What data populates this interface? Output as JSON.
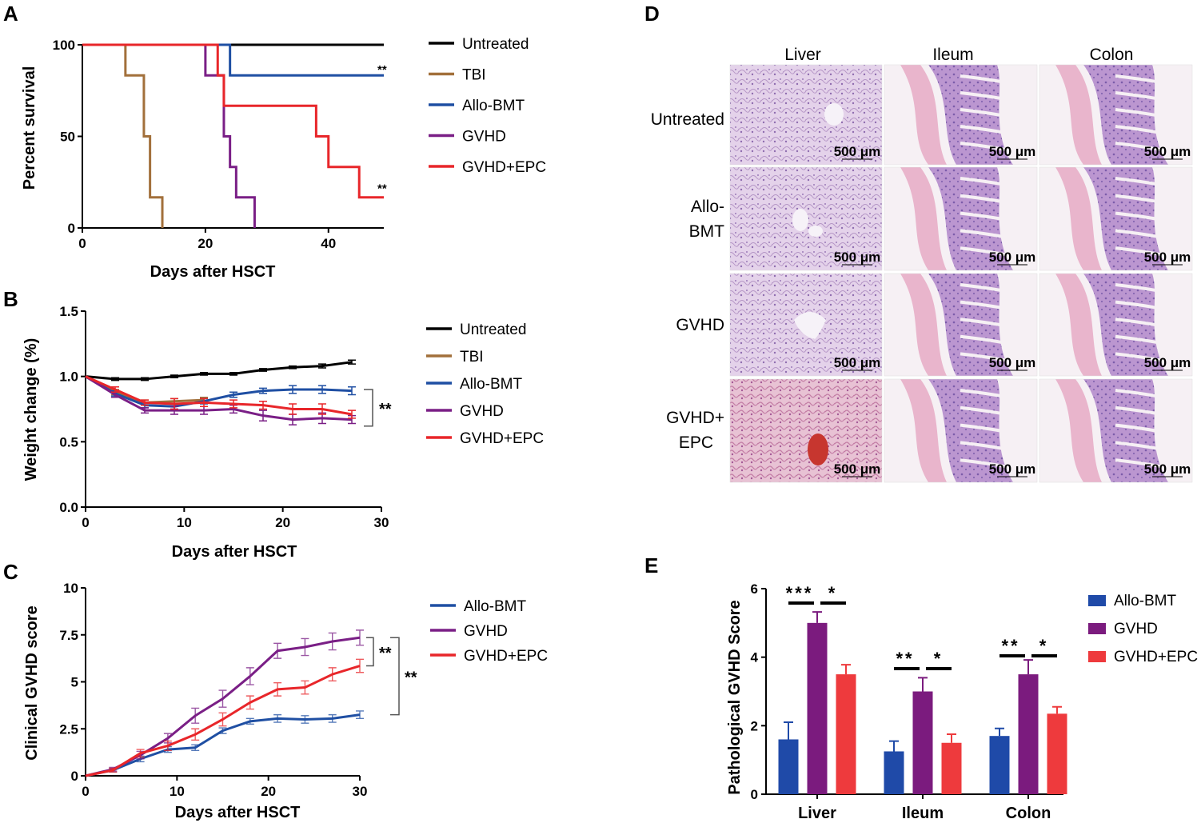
{
  "panel_labels": {
    "A": "A",
    "B": "B",
    "C": "C",
    "D": "D",
    "E": "E"
  },
  "colors": {
    "Untreated": "#000000",
    "TBI": "#a2703b",
    "Allo-BMT": "#1f4fa3",
    "GVHD": "#7a1f86",
    "GVHD+EPC": "#e8262a",
    "E_Allo-BMT": "#1f4aa8",
    "E_GVHD": "#7b1b7e",
    "E_GVHD+EPC": "#ee3a3d"
  },
  "chart_data": [
    {
      "id": "A",
      "type": "line",
      "step": true,
      "xlabel": "Days after HSCT",
      "ylabel": "Percent survival",
      "xlim": [
        0,
        49
      ],
      "ylim": [
        0,
        100
      ],
      "xticks": [
        0,
        20,
        40
      ],
      "yticks": [
        0,
        50,
        100
      ],
      "legend": [
        "Untreated",
        "TBI",
        "Allo-BMT",
        "GVHD",
        "GVHD+EPC"
      ],
      "series": [
        {
          "name": "Untreated",
          "x": [
            0,
            49
          ],
          "y": [
            100,
            100
          ]
        },
        {
          "name": "TBI",
          "x": [
            0,
            7,
            10,
            11,
            13
          ],
          "y": [
            100,
            83.3,
            50,
            16.7,
            0
          ]
        },
        {
          "name": "Allo-BMT",
          "x": [
            0,
            24,
            49
          ],
          "y": [
            100,
            83.3,
            83.3
          ]
        },
        {
          "name": "GVHD",
          "x": [
            0,
            20,
            23,
            24,
            25,
            28
          ],
          "y": [
            100,
            83.3,
            50,
            33.3,
            16.7,
            0
          ]
        },
        {
          "name": "GVHD+EPC",
          "x": [
            0,
            22,
            23,
            38,
            40,
            45,
            49
          ],
          "y": [
            100,
            83.3,
            66.7,
            50,
            33.3,
            16.7,
            16.7
          ]
        }
      ],
      "annotations": [
        {
          "text": "**",
          "x": 49,
          "y": 87
        },
        {
          "text": "**",
          "x": 49,
          "y": 22
        }
      ]
    },
    {
      "id": "B",
      "type": "line",
      "xlabel": "Days after HSCT",
      "ylabel": "Weight change (%)",
      "xlim": [
        0,
        30
      ],
      "ylim": [
        0,
        1.5
      ],
      "xticks": [
        0,
        10,
        20,
        30
      ],
      "yticks": [
        "0.0",
        "0.5",
        "1.0",
        "1.5"
      ],
      "legend": [
        "Untreated",
        "TBI",
        "Allo-BMT",
        "GVHD",
        "GVHD+EPC"
      ],
      "series": [
        {
          "name": "Untreated",
          "x": [
            0,
            3,
            6,
            9,
            12,
            15,
            18,
            21,
            24,
            27
          ],
          "y": [
            1.0,
            0.98,
            0.98,
            1.0,
            1.02,
            1.02,
            1.05,
            1.07,
            1.08,
            1.11
          ],
          "err": [
            0,
            0.01,
            0.01,
            0.01,
            0.01,
            0.01,
            0.01,
            0.01,
            0.015,
            0.015
          ]
        },
        {
          "name": "TBI",
          "x": [
            0,
            3,
            6,
            9,
            12
          ],
          "y": [
            1.0,
            0.88,
            0.8,
            0.81,
            0.82
          ],
          "err": [
            0,
            0.02,
            0.02,
            0.02,
            0.02
          ]
        },
        {
          "name": "Allo-BMT",
          "x": [
            0,
            3,
            6,
            9,
            12,
            15,
            18,
            21,
            24,
            27
          ],
          "y": [
            1.0,
            0.87,
            0.78,
            0.77,
            0.81,
            0.86,
            0.89,
            0.9,
            0.9,
            0.89
          ],
          "err": [
            0,
            0.02,
            0.02,
            0.02,
            0.02,
            0.02,
            0.02,
            0.03,
            0.03,
            0.03
          ]
        },
        {
          "name": "GVHD",
          "x": [
            0,
            3,
            6,
            9,
            12,
            15,
            18,
            21,
            24,
            27
          ],
          "y": [
            1.0,
            0.86,
            0.74,
            0.74,
            0.74,
            0.75,
            0.7,
            0.67,
            0.68,
            0.67
          ],
          "err": [
            0,
            0.02,
            0.02,
            0.03,
            0.03,
            0.03,
            0.04,
            0.04,
            0.04,
            0.03
          ]
        },
        {
          "name": "GVHD+EPC",
          "x": [
            0,
            3,
            6,
            9,
            12,
            15,
            18,
            21,
            24,
            27
          ],
          "y": [
            1.0,
            0.9,
            0.8,
            0.79,
            0.8,
            0.79,
            0.78,
            0.75,
            0.75,
            0.71
          ],
          "err": [
            0,
            0.02,
            0.02,
            0.04,
            0.03,
            0.03,
            0.03,
            0.04,
            0.04,
            0.03
          ]
        }
      ],
      "annotations": [
        {
          "text": "**",
          "between": [
            "Allo-BMT",
            "GVHD+EPC"
          ]
        }
      ]
    },
    {
      "id": "C",
      "type": "line",
      "xlabel": "Days after HSCT",
      "ylabel": "Clinical GVHD score",
      "xlim": [
        0,
        30
      ],
      "ylim": [
        0,
        10
      ],
      "xticks": [
        0,
        10,
        20,
        30
      ],
      "yticks": [
        "0",
        "2.5",
        "5",
        "7.5",
        "10"
      ],
      "legend": [
        "Allo-BMT",
        "GVHD",
        "GVHD+EPC"
      ],
      "series": [
        {
          "name": "Allo-BMT",
          "x": [
            0,
            3,
            6,
            9,
            12,
            15,
            18,
            21,
            24,
            27,
            30
          ],
          "y": [
            0,
            0.3,
            0.9,
            1.4,
            1.5,
            2.4,
            2.9,
            3.05,
            3.0,
            3.05,
            3.25
          ],
          "err": [
            0,
            0.1,
            0.15,
            0.15,
            0.15,
            0.15,
            0.15,
            0.2,
            0.2,
            0.2,
            0.2
          ]
        },
        {
          "name": "GVHD",
          "x": [
            0,
            3,
            6,
            9,
            12,
            15,
            18,
            21,
            24,
            27,
            30
          ],
          "y": [
            0,
            0.35,
            1.1,
            2.0,
            3.2,
            4.1,
            5.3,
            6.65,
            6.85,
            7.15,
            7.35
          ],
          "err": [
            0,
            0.1,
            0.2,
            0.25,
            0.4,
            0.45,
            0.45,
            0.4,
            0.45,
            0.45,
            0.4
          ]
        },
        {
          "name": "GVHD+EPC",
          "x": [
            0,
            3,
            6,
            9,
            12,
            15,
            18,
            21,
            24,
            27,
            30
          ],
          "y": [
            0,
            0.3,
            1.2,
            1.6,
            2.2,
            3.0,
            3.9,
            4.6,
            4.7,
            5.4,
            5.85
          ],
          "err": [
            0,
            0.1,
            0.2,
            0.25,
            0.3,
            0.35,
            0.35,
            0.35,
            0.35,
            0.35,
            0.35
          ]
        }
      ],
      "annotations": [
        {
          "text": "**",
          "between": [
            "GVHD",
            "GVHD+EPC"
          ]
        },
        {
          "text": "**",
          "between": [
            "GVHD",
            "Allo-BMT"
          ]
        }
      ]
    },
    {
      "id": "E",
      "type": "bar",
      "ylabel": "Pathological GVHD Score",
      "ylim": [
        0,
        6
      ],
      "yticks": [
        0,
        2,
        4,
        6
      ],
      "categories": [
        "Liver",
        "Ileum",
        "Colon"
      ],
      "legend": [
        "Allo-BMT",
        "GVHD",
        "GVHD+EPC"
      ],
      "series": [
        {
          "name": "Allo-BMT",
          "values": [
            1.6,
            1.25,
            1.7
          ],
          "err": [
            0.5,
            0.3,
            0.22
          ]
        },
        {
          "name": "GVHD",
          "values": [
            5.0,
            3.0,
            3.5
          ],
          "err": [
            0.32,
            0.4,
            0.42
          ]
        },
        {
          "name": "GVHD+EPC",
          "values": [
            3.5,
            1.5,
            2.35
          ],
          "err": [
            0.28,
            0.25,
            0.2
          ]
        }
      ],
      "significance": [
        {
          "category": "Liver",
          "left": "***",
          "right": "*"
        },
        {
          "category": "Ileum",
          "left": "**",
          "right": "*"
        },
        {
          "category": "Colon",
          "left": "**",
          "right": "*"
        }
      ]
    }
  ],
  "histology": {
    "columns": [
      "Liver",
      "Ileum",
      "Colon"
    ],
    "rows": [
      {
        "label1": "Untreated",
        "label2": ""
      },
      {
        "label1": "Allo-",
        "label2": "BMT"
      },
      {
        "label1": "GVHD",
        "label2": ""
      },
      {
        "label1": "GVHD+",
        "label2": "EPC"
      }
    ],
    "scalebar": "500 μm"
  }
}
